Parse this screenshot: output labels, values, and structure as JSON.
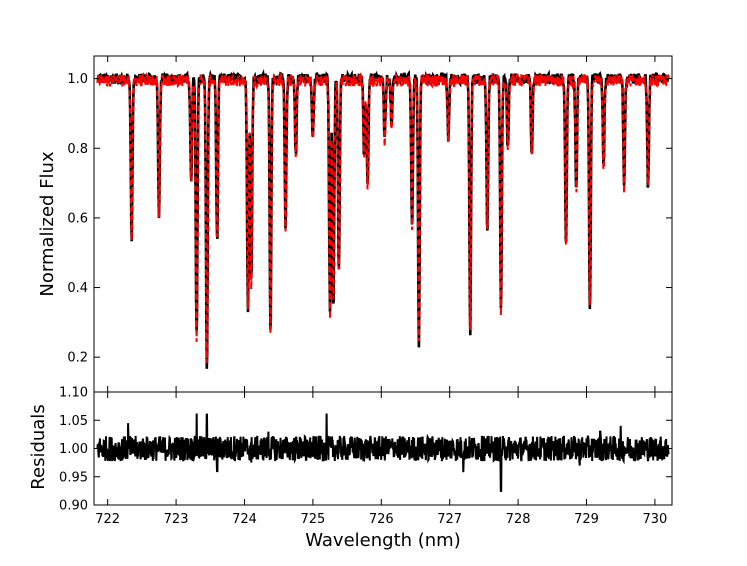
{
  "chart_data": [
    {
      "type": "line",
      "title": "",
      "xlabel": "Wavelength (nm)",
      "ylabel": "Normalized Flux",
      "xlim": [
        721.8,
        730.25
      ],
      "ylim": [
        0.1,
        1.065
      ],
      "yticks": [
        0.2,
        0.4,
        0.6,
        0.8,
        1.0
      ],
      "ytick_labels": [
        "0.2",
        "0.4",
        "0.6",
        "0.8",
        "1.0"
      ],
      "grid": false,
      "series": [
        {
          "color": "#000000",
          "style": "solid"
        },
        {
          "color": "#ff0000",
          "style": "dashed"
        }
      ],
      "x": [
        721.85,
        722.35,
        722.75,
        723.22,
        723.3,
        723.45,
        723.6,
        724.05,
        724.1,
        724.38,
        724.6,
        724.75,
        725.0,
        725.25,
        725.3,
        725.38,
        725.75,
        725.8,
        726.05,
        726.15,
        726.45,
        726.55,
        726.98,
        727.3,
        727.55,
        727.75,
        727.85,
        728.2,
        728.7,
        728.85,
        729.05,
        729.25,
        729.55,
        729.9,
        730.2
      ],
      "y": [
        0.99,
        0.54,
        0.6,
        0.71,
        0.26,
        0.17,
        0.53,
        0.34,
        0.41,
        0.265,
        0.57,
        0.78,
        0.83,
        0.32,
        0.35,
        0.45,
        0.77,
        0.69,
        0.82,
        0.86,
        0.57,
        0.235,
        0.83,
        0.27,
        0.56,
        0.33,
        0.8,
        0.78,
        0.51,
        0.68,
        0.335,
        0.74,
        0.69,
        0.68,
        1.01
      ]
    },
    {
      "type": "line",
      "title": "",
      "xlabel": "Wavelength (nm)",
      "ylabel": "Residuals",
      "xlim": [
        721.8,
        730.25
      ],
      "ylim": [
        0.9,
        1.1
      ],
      "xticks": [
        722,
        723,
        724,
        725,
        726,
        727,
        728,
        729,
        730
      ],
      "xtick_labels": [
        "722",
        "723",
        "724",
        "725",
        "726",
        "727",
        "728",
        "729",
        "730"
      ],
      "yticks": [
        0.9,
        0.95,
        1.0,
        1.05,
        1.1
      ],
      "ytick_labels": [
        "0.90",
        "0.95",
        "1.00",
        "1.05",
        "1.10"
      ],
      "grid": false,
      "series": [
        {
          "color": "#000000",
          "style": "solid"
        }
      ],
      "x": [
        721.85,
        722.1,
        722.3,
        722.5,
        722.9,
        723.3,
        723.45,
        723.6,
        723.85,
        724.1,
        724.35,
        724.6,
        724.9,
        725.2,
        725.5,
        725.8,
        726.2,
        726.5,
        726.8,
        727.2,
        727.5,
        727.75,
        728.1,
        728.5,
        728.9,
        729.2,
        729.5,
        729.7,
        730.2
      ],
      "y": [
        1.0,
        0.985,
        1.045,
        0.99,
        1.01,
        1.062,
        1.06,
        0.96,
        1.02,
        0.975,
        1.03,
        1.0,
        0.98,
        1.062,
        1.0,
        0.985,
        1.01,
        0.99,
        1.01,
        0.958,
        1.02,
        0.925,
        1.0,
        1.01,
        0.97,
        1.03,
        1.04,
        1.0,
        0.99
      ]
    }
  ]
}
